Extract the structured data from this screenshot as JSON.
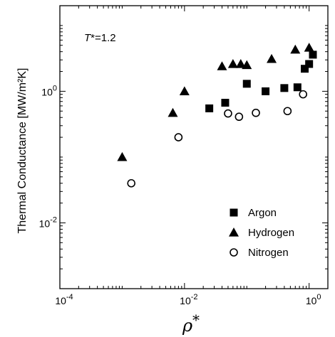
{
  "chart_data": {
    "type": "scatter",
    "xscale": "log",
    "yscale": "log",
    "xlim": [
      0.0001,
      2
    ],
    "ylim": [
      0.001,
      20
    ],
    "grid": false,
    "legend_position": "bottom-right",
    "xlabel_base": "ρ",
    "xlabel_sup": "*",
    "ylabel": "Thermal Conductance [MW/m²K]",
    "annotation": {
      "italic": "T",
      "rest": "*=1.2"
    },
    "x_ticks": [
      {
        "value": 0.0001,
        "base": "10",
        "exp": "-4"
      },
      {
        "value": 0.01,
        "base": "10",
        "exp": "-2"
      },
      {
        "value": 1,
        "base": "10",
        "exp": "0"
      }
    ],
    "y_ticks": [
      {
        "value": 0.01,
        "base": "10",
        "exp": "-2"
      },
      {
        "value": 1,
        "base": "10",
        "exp": "0"
      }
    ],
    "series": [
      {
        "name": "Argon",
        "marker": "square",
        "color": "#000000",
        "x": [
          0.025,
          0.045,
          0.1,
          0.2,
          0.4,
          0.65,
          0.85,
          1.0,
          1.15
        ],
        "y": [
          0.55,
          0.67,
          1.3,
          1.0,
          1.12,
          1.15,
          2.2,
          2.6,
          3.6
        ]
      },
      {
        "name": "Hydrogen",
        "marker": "triangle",
        "color": "#000000",
        "x": [
          0.001,
          0.0065,
          0.01,
          0.04,
          0.06,
          0.08,
          0.1,
          0.25,
          0.6,
          1.0
        ],
        "y": [
          0.1,
          0.47,
          1.0,
          2.4,
          2.6,
          2.6,
          2.5,
          3.1,
          4.3,
          4.6
        ]
      },
      {
        "name": "Nitrogen",
        "marker": "circle-open",
        "color": "#000000",
        "x": [
          0.0014,
          0.008,
          0.05,
          0.075,
          0.14,
          0.45,
          0.8
        ],
        "y": [
          0.04,
          0.2,
          0.46,
          0.41,
          0.47,
          0.5,
          0.9
        ]
      }
    ]
  }
}
